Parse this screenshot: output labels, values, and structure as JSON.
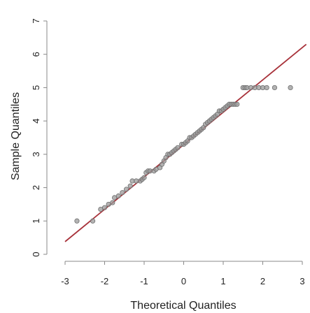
{
  "chart_data": {
    "type": "scatter",
    "xlabel": "Theoretical Quantiles",
    "ylabel": "Sample Quantiles",
    "xlim": [
      -3,
      3
    ],
    "ylim": [
      0,
      7
    ],
    "x_ticks": [
      "-3",
      "-2",
      "-1",
      "0",
      "1",
      "2",
      "3"
    ],
    "y_ticks": [
      "0",
      "1",
      "2",
      "3",
      "4",
      "5",
      "6",
      "7"
    ],
    "grid": false,
    "line_color": "#a8323a",
    "point_color": "#9a9a9a",
    "reference_line": {
      "x": [
        -3,
        3.1
      ],
      "y": [
        0.38,
        6.3
      ]
    },
    "points": [
      {
        "x": -2.7,
        "y": 1.0
      },
      {
        "x": -2.3,
        "y": 1.0
      },
      {
        "x": -2.1,
        "y": 1.35
      },
      {
        "x": -2.0,
        "y": 1.4
      },
      {
        "x": -1.9,
        "y": 1.5
      },
      {
        "x": -1.8,
        "y": 1.55
      },
      {
        "x": -1.75,
        "y": 1.7
      },
      {
        "x": -1.65,
        "y": 1.75
      },
      {
        "x": -1.55,
        "y": 1.85
      },
      {
        "x": -1.45,
        "y": 1.95
      },
      {
        "x": -1.35,
        "y": 2.05
      },
      {
        "x": -1.3,
        "y": 2.2
      },
      {
        "x": -1.2,
        "y": 2.2
      },
      {
        "x": -1.1,
        "y": 2.2
      },
      {
        "x": -1.05,
        "y": 2.25
      },
      {
        "x": -1.0,
        "y": 2.3
      },
      {
        "x": -0.95,
        "y": 2.45
      },
      {
        "x": -0.9,
        "y": 2.5
      },
      {
        "x": -0.85,
        "y": 2.5
      },
      {
        "x": -0.75,
        "y": 2.5
      },
      {
        "x": -0.7,
        "y": 2.55
      },
      {
        "x": -0.6,
        "y": 2.6
      },
      {
        "x": -0.55,
        "y": 2.7
      },
      {
        "x": -0.5,
        "y": 2.8
      },
      {
        "x": -0.45,
        "y": 2.9
      },
      {
        "x": -0.4,
        "y": 3.0
      },
      {
        "x": -0.35,
        "y": 3.0
      },
      {
        "x": -0.3,
        "y": 3.05
      },
      {
        "x": -0.25,
        "y": 3.1
      },
      {
        "x": -0.2,
        "y": 3.15
      },
      {
        "x": -0.15,
        "y": 3.2
      },
      {
        "x": -0.05,
        "y": 3.3
      },
      {
        "x": 0.0,
        "y": 3.3
      },
      {
        "x": 0.05,
        "y": 3.35
      },
      {
        "x": 0.1,
        "y": 3.4
      },
      {
        "x": 0.15,
        "y": 3.5
      },
      {
        "x": 0.2,
        "y": 3.5
      },
      {
        "x": 0.25,
        "y": 3.55
      },
      {
        "x": 0.3,
        "y": 3.6
      },
      {
        "x": 0.35,
        "y": 3.65
      },
      {
        "x": 0.4,
        "y": 3.7
      },
      {
        "x": 0.45,
        "y": 3.75
      },
      {
        "x": 0.5,
        "y": 3.8
      },
      {
        "x": 0.55,
        "y": 3.9
      },
      {
        "x": 0.6,
        "y": 3.95
      },
      {
        "x": 0.65,
        "y": 4.0
      },
      {
        "x": 0.7,
        "y": 4.05
      },
      {
        "x": 0.75,
        "y": 4.1
      },
      {
        "x": 0.8,
        "y": 4.15
      },
      {
        "x": 0.85,
        "y": 4.2
      },
      {
        "x": 0.9,
        "y": 4.3
      },
      {
        "x": 0.95,
        "y": 4.3
      },
      {
        "x": 1.0,
        "y": 4.35
      },
      {
        "x": 1.05,
        "y": 4.4
      },
      {
        "x": 1.1,
        "y": 4.45
      },
      {
        "x": 1.15,
        "y": 4.5
      },
      {
        "x": 1.2,
        "y": 4.5
      },
      {
        "x": 1.25,
        "y": 4.5
      },
      {
        "x": 1.3,
        "y": 4.5
      },
      {
        "x": 1.35,
        "y": 4.5
      },
      {
        "x": 1.5,
        "y": 5.0
      },
      {
        "x": 1.55,
        "y": 5.0
      },
      {
        "x": 1.6,
        "y": 5.0
      },
      {
        "x": 1.7,
        "y": 5.0
      },
      {
        "x": 1.8,
        "y": 5.0
      },
      {
        "x": 1.9,
        "y": 5.0
      },
      {
        "x": 2.0,
        "y": 5.0
      },
      {
        "x": 2.1,
        "y": 5.0
      },
      {
        "x": 2.3,
        "y": 5.0
      },
      {
        "x": 2.7,
        "y": 5.0
      }
    ]
  }
}
